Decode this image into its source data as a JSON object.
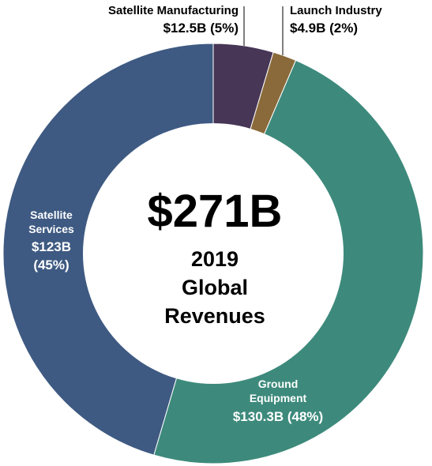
{
  "chart_data": {
    "type": "pie",
    "center_value": "$271B",
    "center_caption": [
      "2019",
      "Global",
      "Revenues"
    ],
    "slices": [
      {
        "name": "Satellite Manufacturing",
        "value": 12.5,
        "percent": 5,
        "value_label": "$12.5B (5%)",
        "color": "#473656"
      },
      {
        "name": "Launch Industry",
        "value": 4.9,
        "percent": 2,
        "value_label": "$4.9B (2%)",
        "color": "#8a6a3a"
      },
      {
        "name": "Ground Equipment",
        "value": 130.3,
        "percent": 48,
        "value_label": "$130.3B (48%)",
        "color": "#3d8a7c"
      },
      {
        "name": "Satellite Services",
        "value": 123,
        "percent": 45,
        "value_label": "$123B (45%)",
        "color": "#3e5a82"
      }
    ],
    "label_lines": {
      "satellite_manufacturing": [
        "Satellite Manufacturing",
        "$12.5B (5%)"
      ],
      "launch_industry": [
        "Launch Industry",
        "$4.9B (2%)"
      ],
      "ground_equipment": [
        "Ground",
        "Equipment",
        "$130.3B (48%)"
      ],
      "satellite_services": [
        "Satellite",
        "Services",
        "$123B",
        "(45%)"
      ]
    }
  }
}
